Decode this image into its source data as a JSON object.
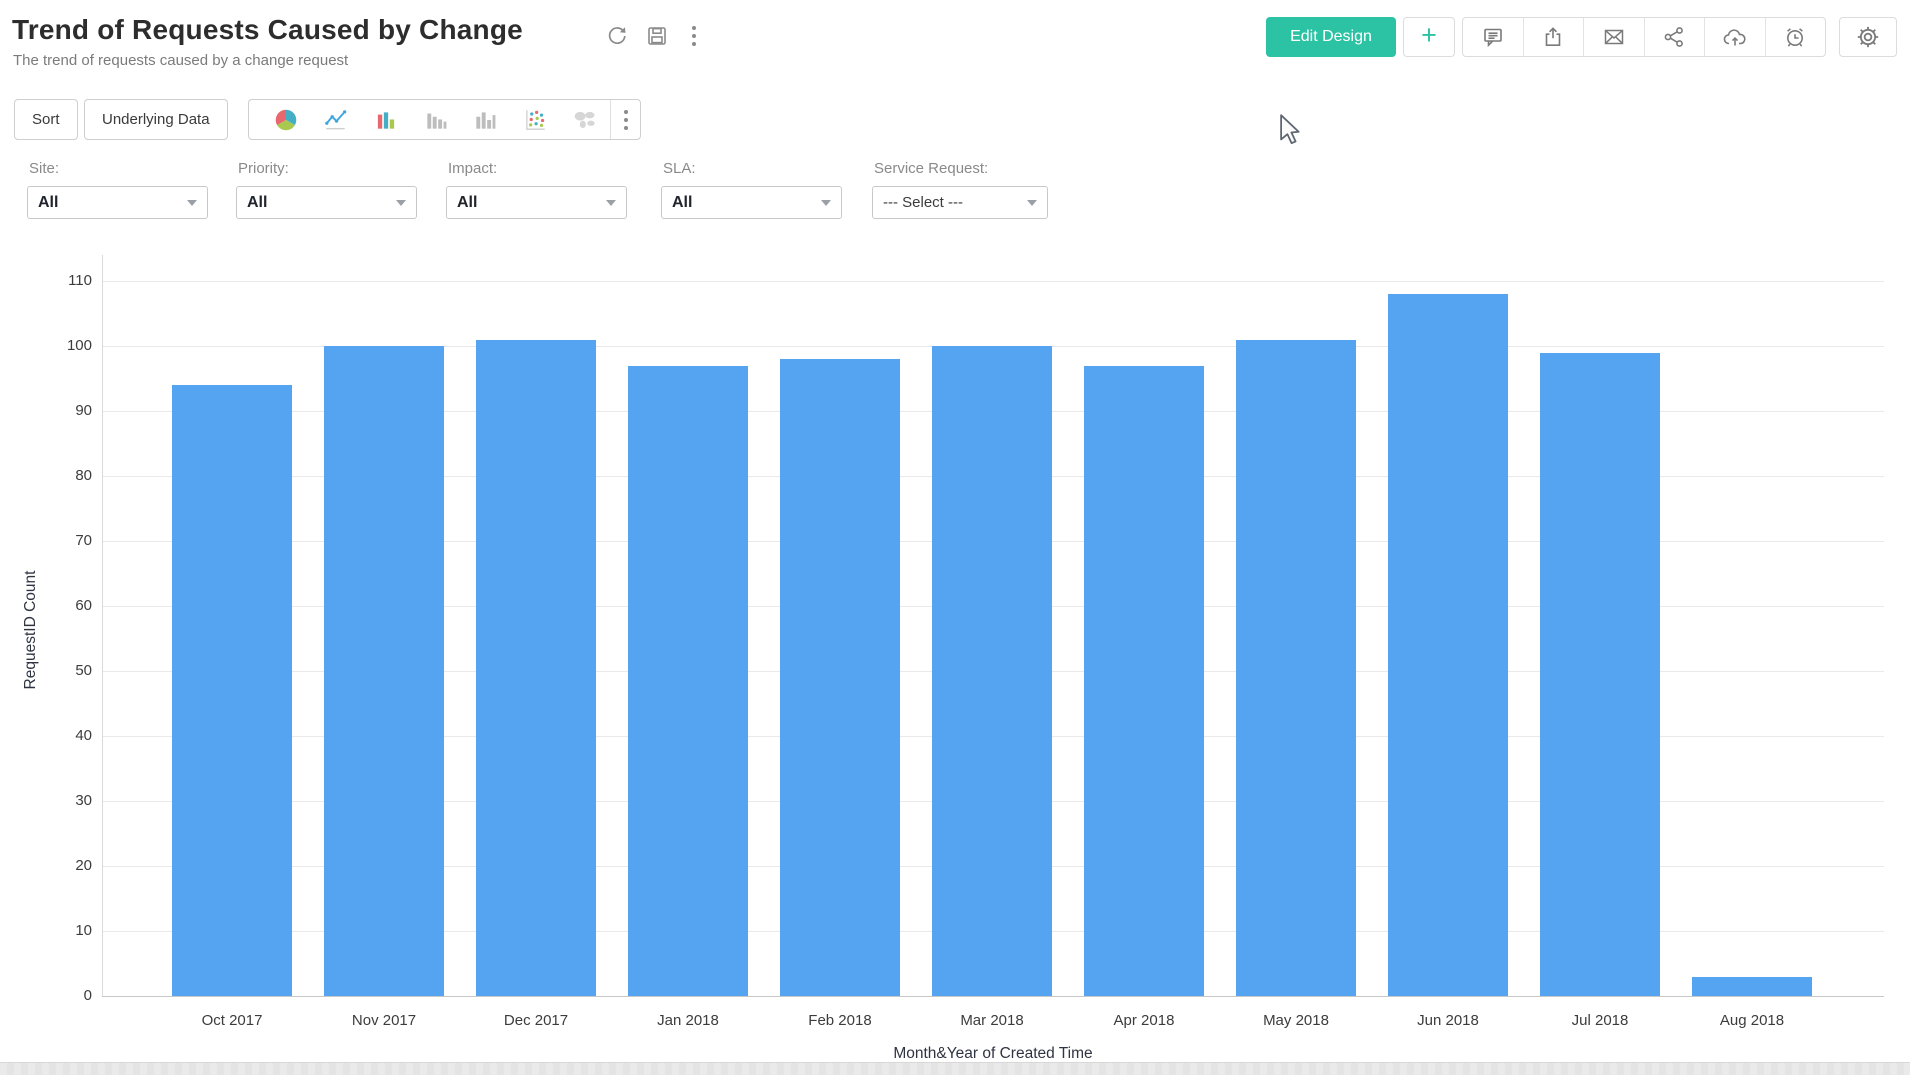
{
  "header": {
    "title": "Trend of Requests Caused by Change",
    "subtitle": "The trend of requests caused by a change request",
    "tools": [
      "refresh-icon",
      "save-icon",
      "more-options-icon"
    ]
  },
  "actions": {
    "edit_design": "Edit Design",
    "add": "+",
    "icon_buttons": [
      "comment-icon",
      "export-icon",
      "email-icon",
      "share-icon",
      "cloud-upload-icon",
      "alarm-clock-icon",
      "gear-icon"
    ]
  },
  "toolbar": {
    "sort": "Sort",
    "underlying_data": "Underlying Data",
    "chart_types": [
      "pie-chart-icon",
      "line-chart-icon",
      "bar-chart-color-icon",
      "bar-chart-gray-icon",
      "bar-chart-mixed-icon",
      "scatter-plot-icon",
      "map-chart-icon"
    ],
    "more": "more-chart-options-icon"
  },
  "filters": [
    {
      "label": "Site:",
      "value": "All"
    },
    {
      "label": "Priority:",
      "value": "All"
    },
    {
      "label": "Impact:",
      "value": "All"
    },
    {
      "label": "SLA:",
      "value": "All"
    },
    {
      "label": "Service Request:",
      "value": "--- Select ---"
    }
  ],
  "chart_data": {
    "type": "bar",
    "title": "Trend of Requests Caused by Change",
    "categories": [
      "Oct 2017",
      "Nov 2017",
      "Dec 2017",
      "Jan 2018",
      "Feb 2018",
      "Mar 2018",
      "Apr 2018",
      "May 2018",
      "Jun 2018",
      "Jul 2018",
      "Aug 2018"
    ],
    "values": [
      94,
      100,
      101,
      97,
      98,
      100,
      97,
      101,
      108,
      99,
      3
    ],
    "xlabel": "Month&Year of Created Time",
    "ylabel": "RequestID Count",
    "ylim": [
      0,
      110
    ],
    "ytick_step": 10,
    "grid": true,
    "legend": false,
    "bar_color": "#55a4f1"
  },
  "colors": {
    "accent_teal": "#2cc3a5",
    "bar_blue": "#55a4f1",
    "icon_gray": "#7a7a7a"
  }
}
